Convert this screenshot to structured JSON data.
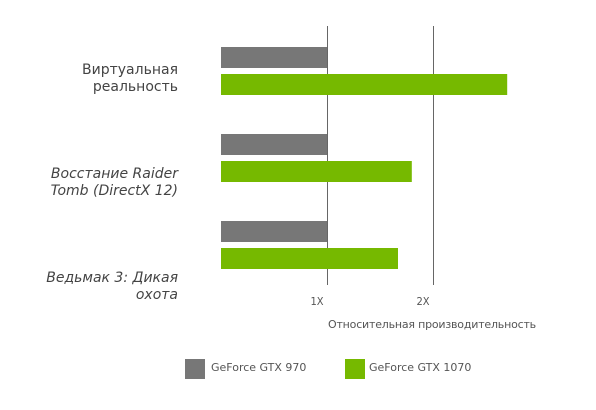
{
  "chart_data": {
    "type": "bar",
    "orientation": "horizontal",
    "categories": [
      [
        "Виртуальная",
        "реальность"
      ],
      [
        "Восстание Raider",
        "Tomb (DirectX 12)"
      ],
      [
        "Ведьмак 3: Дикая",
        "охота"
      ]
    ],
    "series": [
      {
        "name": "GeForce GTX 970",
        "color": "#777777",
        "values": [
          1,
          1,
          1
        ]
      },
      {
        "name": "GeForce GTX 1070",
        "color": "#76b900",
        "values": [
          2.7,
          1.8,
          1.67
        ]
      }
    ],
    "xlabel": "Относительная производительность",
    "x_ticks": [
      {
        "value": 1,
        "label": "1X"
      },
      {
        "value": 2,
        "label": "2X"
      }
    ],
    "xlim": [
      0,
      3
    ],
    "grid": "vertical lines at ticks",
    "legend_position": "bottom"
  }
}
